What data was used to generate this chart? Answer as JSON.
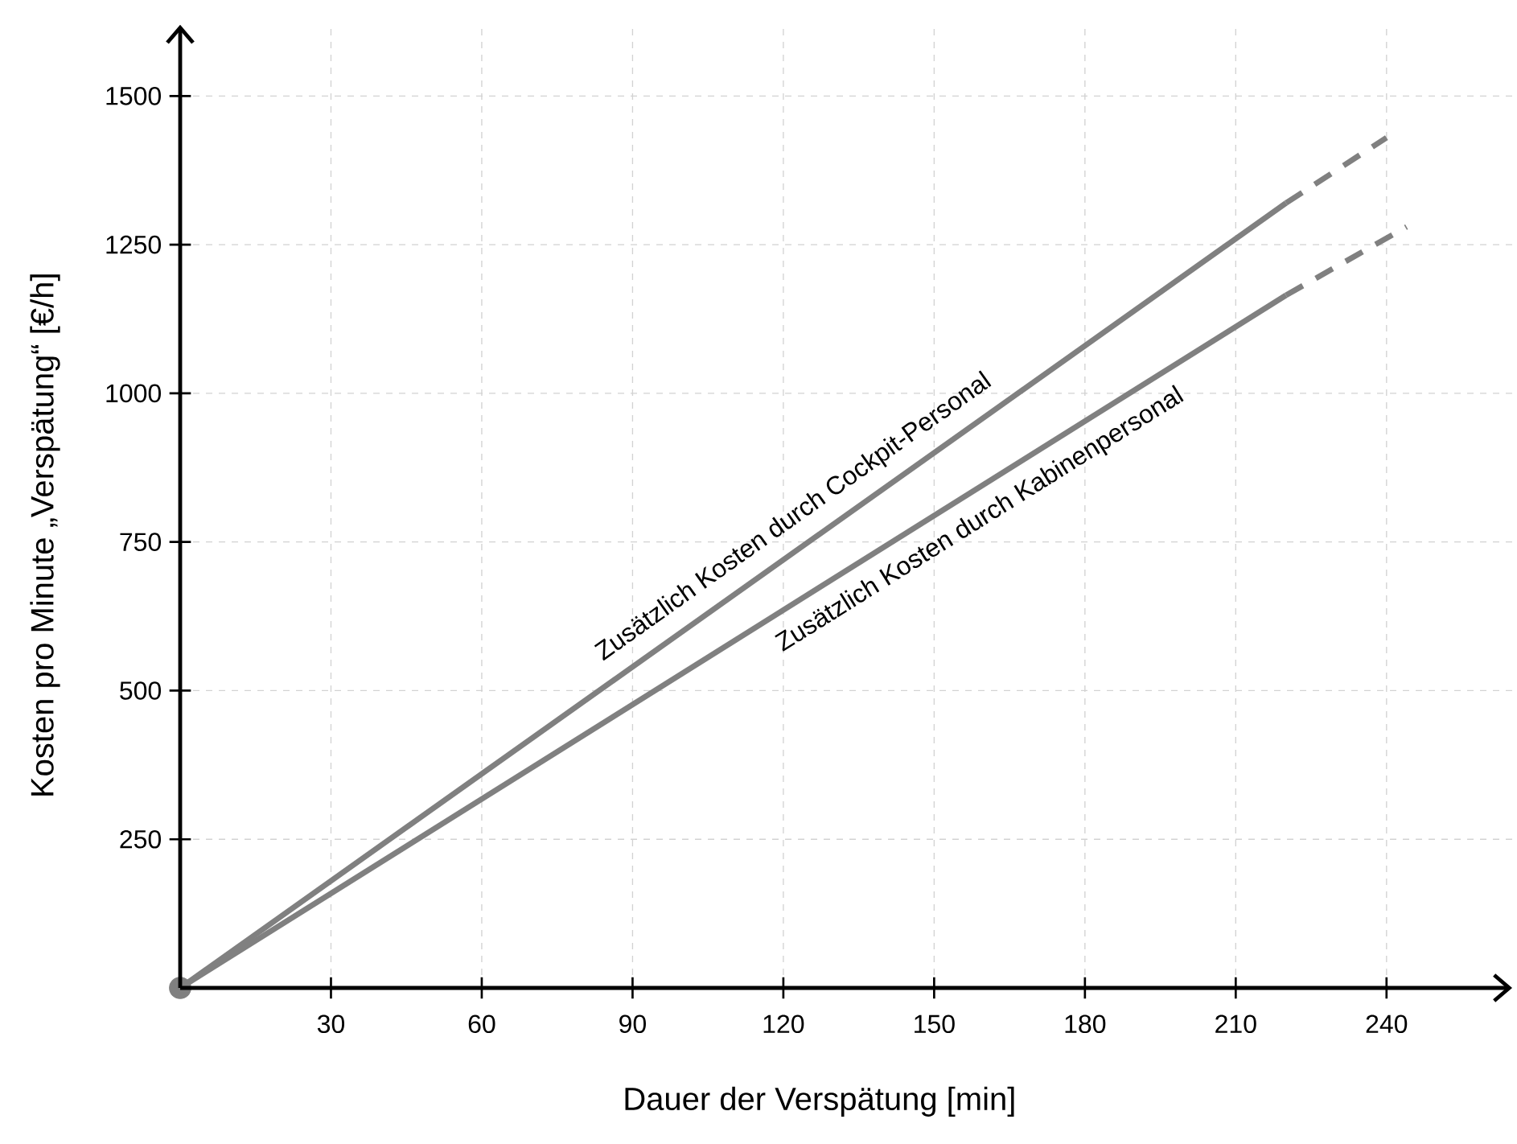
{
  "chart_data": {
    "type": "line",
    "xlabel": "Dauer der Verspätung [min]",
    "ylabel": "Kosten pro Minute „Verspätung“ [€/h]",
    "xlim": [
      0,
      265
    ],
    "ylim": [
      0,
      1620
    ],
    "xticks": [
      30,
      60,
      90,
      120,
      150,
      180,
      210,
      240
    ],
    "yticks": [
      250,
      500,
      750,
      1000,
      1250,
      1500
    ],
    "grid": true,
    "series": [
      {
        "name": "Zusätzlich Kosten durch Cockpit-Personal",
        "color": "#808080",
        "x": [
          0,
          220
        ],
        "values": [
          0,
          1320
        ],
        "line_style": "solid"
      },
      {
        "name": "Zusätzlich Kosten durch Kabinenpersonal",
        "color": "#808080",
        "x": [
          0,
          220
        ],
        "values": [
          0,
          1165
        ],
        "line_style": "solid"
      },
      {
        "color": "#808080",
        "x": [
          220,
          240
        ],
        "values": [
          1320,
          1430
        ],
        "line_style": "dashed"
      },
      {
        "color": "#808080",
        "x": [
          220,
          244
        ],
        "values": [
          1165,
          1280
        ],
        "line_style": "dashed"
      },
      {
        "type": "scatter",
        "color": "#808080",
        "x": [
          0
        ],
        "values": [
          0
        ],
        "marker": "circle"
      }
    ]
  }
}
